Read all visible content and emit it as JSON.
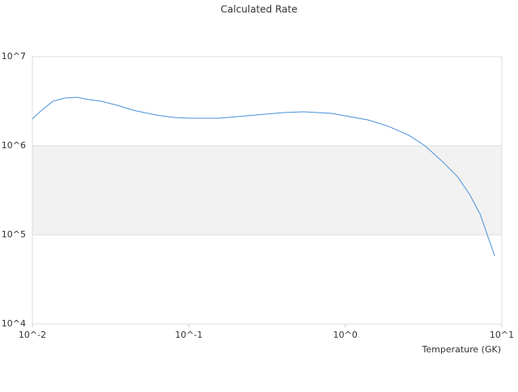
{
  "chart_data": {
    "type": "line",
    "title": "Calculated Rate",
    "x_label": "Temperature (GK)",
    "log_x": true,
    "log_y": true,
    "alternate_bands": true,
    "color": "#4a90d9",
    "x": [
      0.01,
      0.0113,
      0.0135,
      0.0161,
      0.0193,
      0.023,
      0.0275,
      0.0349,
      0.0443,
      0.0634,
      0.0804,
      0.102,
      0.155,
      0.235,
      0.402,
      0.541,
      0.82,
      1.4,
      1.89,
      2.55,
      3.23,
      4.1,
      5.2,
      6.22,
      7.26,
      9.0
    ],
    "values": [
      2000000,
      2450000,
      3160000,
      3440000,
      3500000,
      3300000,
      3160000,
      2850000,
      2500000,
      2200000,
      2080000,
      2040000,
      2040000,
      2170000,
      2360000,
      2410000,
      2310000,
      1950000,
      1650000,
      1310000,
      1000000,
      685000,
      452000,
      285000,
      172000,
      58000
    ],
    "xlim": [
      0.01,
      10
    ],
    "xticks": [
      {
        "value": 0.01,
        "label": "10^-2"
      },
      {
        "value": 0.1,
        "label": "10^-1"
      },
      {
        "value": 1,
        "label": "10^0"
      },
      {
        "value": 10,
        "label": "10^1"
      }
    ],
    "ylim": [
      10000,
      10000000
    ],
    "yticks": [
      {
        "value": 10000,
        "label": "10^4"
      },
      {
        "value": 100000,
        "label": "10^5"
      },
      {
        "value": 1000000,
        "label": "10^6"
      },
      {
        "value": 10000000,
        "label": "10^7"
      }
    ]
  }
}
